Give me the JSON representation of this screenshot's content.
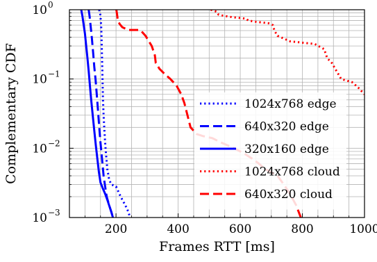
{
  "chart_data": {
    "type": "line",
    "title": "",
    "xlabel": "Frames RTT [ms]",
    "ylabel": "Complementary CDF",
    "xlim": [
      50,
      1000
    ],
    "ylim": [
      0.001,
      1
    ],
    "yscale": "log",
    "grid": true,
    "legend_position": "bottom-right",
    "xticks": [
      {
        "value": 200,
        "label": "200"
      },
      {
        "value": 400,
        "label": "400"
      },
      {
        "value": 600,
        "label": "600"
      },
      {
        "value": 800,
        "label": "800"
      },
      {
        "value": 1000,
        "label": "1000"
      }
    ],
    "yticks": [
      {
        "value": 1,
        "base": "10",
        "exp": "0"
      },
      {
        "value": 0.1,
        "base": "10",
        "exp": "−1"
      },
      {
        "value": 0.01,
        "base": "10",
        "exp": "−2"
      },
      {
        "value": 0.001,
        "base": "10",
        "exp": "−3"
      }
    ],
    "series": [
      {
        "name": "1024x768 edge",
        "color": "#0000ff",
        "style": "dotted",
        "x": [
          145,
          148,
          150,
          152,
          153,
          154,
          155,
          156,
          157,
          158,
          160,
          162,
          165,
          168,
          172,
          178,
          185,
          200,
          215,
          230,
          240,
          245
        ],
        "y": [
          1,
          0.95,
          0.8,
          0.6,
          0.45,
          0.3,
          0.2,
          0.13,
          0.08,
          0.05,
          0.03,
          0.02,
          0.012,
          0.008,
          0.005,
          0.0035,
          0.003,
          0.0028,
          0.002,
          0.0015,
          0.0012,
          0.001
        ]
      },
      {
        "name": "640x320 edge",
        "color": "#0000ff",
        "style": "dashed",
        "x": [
          112,
          115,
          118,
          122,
          126,
          130,
          134,
          138,
          142,
          146,
          150,
          155,
          160,
          165,
          170,
          178,
          185,
          190
        ],
        "y": [
          1,
          0.8,
          0.6,
          0.4,
          0.25,
          0.15,
          0.1,
          0.06,
          0.035,
          0.02,
          0.012,
          0.007,
          0.004,
          0.0028,
          0.002,
          0.0015,
          0.0012,
          0.001
        ]
      },
      {
        "name": "320x160 edge",
        "color": "#0000ff",
        "style": "solid",
        "x": [
          88,
          92,
          96,
          100,
          104,
          108,
          112,
          116,
          120,
          125,
          130,
          135,
          140,
          145,
          150,
          158,
          165,
          172,
          180,
          185,
          190
        ],
        "y": [
          1,
          0.8,
          0.6,
          0.45,
          0.3,
          0.2,
          0.13,
          0.08,
          0.05,
          0.03,
          0.018,
          0.011,
          0.007,
          0.0045,
          0.0032,
          0.0026,
          0.0022,
          0.0018,
          0.0014,
          0.0012,
          0.001
        ]
      },
      {
        "name": "1024x768 cloud",
        "color": "#ff0000",
        "style": "dotted",
        "x": [
          505,
          515,
          525,
          530,
          545,
          560,
          575,
          600,
          620,
          625,
          650,
          690,
          705,
          710,
          720,
          760,
          840,
          870,
          880,
          895,
          910,
          925,
          960,
          980,
          1000
        ],
        "y": [
          1,
          0.97,
          0.93,
          0.85,
          0.82,
          0.8,
          0.78,
          0.76,
          0.74,
          0.7,
          0.67,
          0.64,
          0.6,
          0.5,
          0.42,
          0.35,
          0.32,
          0.27,
          0.2,
          0.17,
          0.13,
          0.1,
          0.09,
          0.075,
          0.06
        ]
      },
      {
        "name": "640x320 cloud",
        "color": "#ff0000",
        "style": "dashed",
        "x": [
          201,
          203,
          205,
          207,
          212,
          220,
          240,
          260,
          275,
          280,
          295,
          315,
          325,
          328,
          332,
          340,
          355,
          375,
          395,
          410,
          420,
          430,
          440,
          460,
          480,
          510,
          540,
          560,
          580,
          600,
          620,
          640,
          660,
          680,
          700,
          720,
          740,
          760,
          780,
          795
        ],
        "y": [
          1,
          0.88,
          0.75,
          0.68,
          0.62,
          0.56,
          0.51,
          0.51,
          0.51,
          0.5,
          0.42,
          0.3,
          0.22,
          0.17,
          0.16,
          0.14,
          0.12,
          0.1,
          0.08,
          0.06,
          0.045,
          0.03,
          0.02,
          0.016,
          0.015,
          0.014,
          0.012,
          0.011,
          0.01,
          0.009,
          0.008,
          0.007,
          0.006,
          0.005,
          0.0045,
          0.004,
          0.003,
          0.0022,
          0.0015,
          0.001
        ]
      }
    ]
  }
}
